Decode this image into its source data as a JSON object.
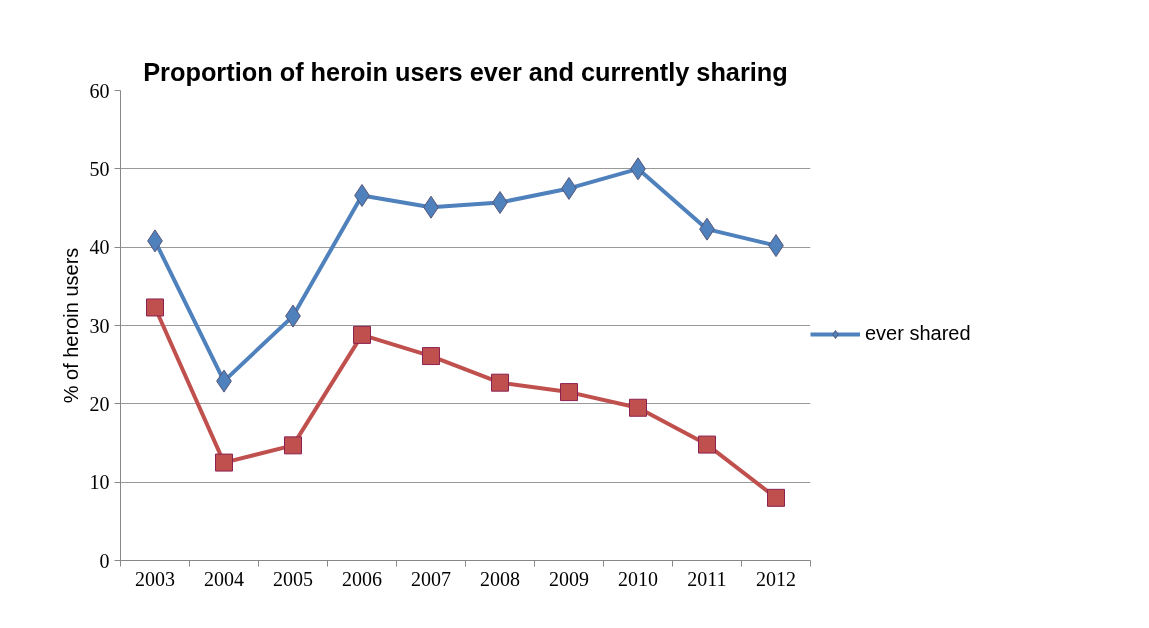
{
  "chart_data": {
    "type": "line",
    "title": "Proportion of heroin users ever and currently sharing",
    "ylabel": "% of heroin users",
    "categories": [
      "2003",
      "2004",
      "2005",
      "2006",
      "2007",
      "2008",
      "2009",
      "2010",
      "2011",
      "2012"
    ],
    "series": [
      {
        "name": "ever shared",
        "color": "#4f81bd",
        "marker": "diamond",
        "values": [
          40.8,
          22.9,
          31.2,
          46.6,
          45.1,
          45.7,
          47.5,
          50.0,
          42.3,
          40.2
        ]
      },
      {
        "color": "#c0504d",
        "marker": "square",
        "values": [
          32.3,
          12.5,
          14.7,
          28.8,
          26.1,
          22.7,
          21.5,
          19.5,
          14.8,
          8.0
        ]
      }
    ],
    "ylim": [
      0,
      60
    ],
    "yticks": [
      0,
      10,
      20,
      30,
      40,
      50,
      60
    ],
    "grid": "y",
    "legend": "right"
  }
}
